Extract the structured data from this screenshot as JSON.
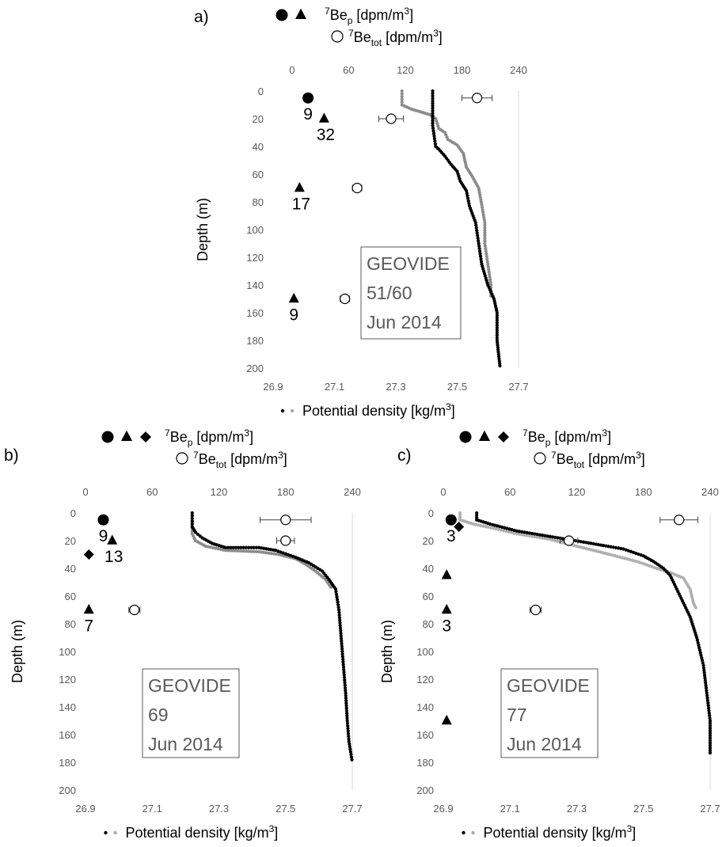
{
  "chart_data": [
    {
      "panel": "a)",
      "type": "scatter",
      "station_text": [
        "GEOVIDE",
        "51/60",
        "Jun 2014"
      ],
      "ylabel": "Depth (m)",
      "xlabel": "Potential density [kg/m³]",
      "legend_top": [
        "⁷Beₚ [dpm/m³]",
        "⁷Beₜₒₜ [dpm/m³]"
      ],
      "legend_symbols": [
        "circle",
        "triangle"
      ],
      "ylim": [
        200,
        0
      ],
      "yticks": [
        "0",
        "20",
        "40",
        "60",
        "80",
        "100",
        "120",
        "140",
        "160",
        "180",
        "200"
      ],
      "x_top": {
        "label_values": [
          "0",
          "60",
          "120",
          "180",
          "240"
        ],
        "lim": [
          -20,
          240
        ]
      },
      "x_bottom": {
        "label_values": [
          "26.9",
          "27.1",
          "27.3",
          "27.5",
          "27.7"
        ],
        "lim": [
          26.9,
          27.7
        ]
      },
      "be7_particulate": [
        {
          "shape": "circle",
          "value": 17,
          "depth": 5,
          "label": "9"
        },
        {
          "shape": "triangle",
          "value": 34,
          "depth": 20,
          "label": "32"
        },
        {
          "shape": "triangle",
          "value": 8,
          "depth": 70,
          "label": "17"
        },
        {
          "shape": "triangle",
          "value": 2,
          "depth": 150,
          "label": "9"
        }
      ],
      "be7_total": [
        {
          "value": 196,
          "depth": 5,
          "err": 16
        },
        {
          "value": 105,
          "depth": 20,
          "err": 13
        },
        {
          "value": 69,
          "depth": 70,
          "err": 5
        },
        {
          "value": 56,
          "depth": 150,
          "err": 5
        }
      ],
      "density_profiles": [
        {
          "name": "gray",
          "color": "#8c8c8c",
          "points": [
            [
              27.32,
              0
            ],
            [
              27.32,
              10
            ],
            [
              27.35,
              13
            ],
            [
              27.38,
              15
            ],
            [
              27.41,
              17
            ],
            [
              27.43,
              20
            ],
            [
              27.44,
              27
            ],
            [
              27.46,
              30
            ],
            [
              27.47,
              35
            ],
            [
              27.5,
              39
            ],
            [
              27.52,
              45
            ],
            [
              27.53,
              55
            ],
            [
              27.55,
              62
            ],
            [
              27.57,
              70
            ],
            [
              27.58,
              82
            ],
            [
              27.59,
              95
            ],
            [
              27.59,
              110
            ],
            [
              27.6,
              125
            ],
            [
              27.61,
              140
            ],
            [
              27.61,
              150
            ]
          ]
        },
        {
          "name": "black",
          "color": "#000000",
          "points": [
            [
              27.42,
              0
            ],
            [
              27.42,
              25
            ],
            [
              27.43,
              40
            ],
            [
              27.44,
              42
            ],
            [
              27.46,
              47
            ],
            [
              27.48,
              53
            ],
            [
              27.5,
              58
            ],
            [
              27.51,
              65
            ],
            [
              27.53,
              72
            ],
            [
              27.54,
              83
            ],
            [
              27.56,
              95
            ],
            [
              27.57,
              110
            ],
            [
              27.58,
              125
            ],
            [
              27.6,
              140
            ],
            [
              27.62,
              150
            ],
            [
              27.63,
              160
            ],
            [
              27.63,
              180
            ],
            [
              27.635,
              190
            ],
            [
              27.64,
              200
            ]
          ]
        }
      ]
    },
    {
      "panel": "b)",
      "type": "scatter",
      "station_text": [
        "GEOVIDE",
        "69",
        "Jun 2014"
      ],
      "ylabel": "Depth (m)",
      "xlabel": "Potential density [kg/m³]",
      "legend_top": [
        "⁷Beₚ [dpm/m³]",
        "⁷Beₜₒₜ [dpm/m³]"
      ],
      "legend_symbols": [
        "circle",
        "triangle",
        "diamond"
      ],
      "ylim": [
        200,
        0
      ],
      "yticks": [
        "0",
        "20",
        "40",
        "60",
        "80",
        "100",
        "120",
        "140",
        "160",
        "180",
        "200"
      ],
      "x_top": {
        "label_values": [
          "0",
          "60",
          "120",
          "180",
          "240"
        ],
        "lim": [
          0,
          240
        ]
      },
      "x_bottom": {
        "label_values": [
          "26.9",
          "27.1",
          "27.3",
          "27.5",
          "27.7"
        ],
        "lim": [
          26.9,
          27.7
        ]
      },
      "be7_particulate": [
        {
          "shape": "circle",
          "value": 16,
          "depth": 5,
          "label": "9"
        },
        {
          "shape": "triangle",
          "value": 24,
          "depth": 20,
          "label": "13"
        },
        {
          "shape": "diamond",
          "value": 3,
          "depth": 30,
          "label": ""
        },
        {
          "shape": "triangle",
          "value": 3,
          "depth": 70,
          "label": "7"
        }
      ],
      "be7_total": [
        {
          "value": 180,
          "depth": 5,
          "err": 23
        },
        {
          "value": 180,
          "depth": 20,
          "err": 8
        },
        {
          "value": 44,
          "depth": 70,
          "err": 5
        }
      ],
      "density_profiles": [
        {
          "name": "gray",
          "color": "#8c8c8c",
          "points": [
            [
              27.22,
              0
            ],
            [
              27.22,
              15
            ],
            [
              27.23,
              20
            ],
            [
              27.26,
              24
            ],
            [
              27.32,
              27
            ],
            [
              27.42,
              28
            ],
            [
              27.48,
              30
            ],
            [
              27.53,
              33
            ],
            [
              27.56,
              37
            ],
            [
              27.59,
              42
            ],
            [
              27.62,
              48
            ],
            [
              27.64,
              55
            ]
          ]
        },
        {
          "name": "black",
          "color": "#000000",
          "points": [
            [
              27.22,
              0
            ],
            [
              27.22,
              10
            ],
            [
              27.23,
              14
            ],
            [
              27.25,
              18
            ],
            [
              27.28,
              22
            ],
            [
              27.32,
              25
            ],
            [
              27.42,
              25
            ],
            [
              27.47,
              27
            ],
            [
              27.53,
              32
            ],
            [
              27.57,
              36
            ],
            [
              27.61,
              42
            ],
            [
              27.63,
              48
            ],
            [
              27.65,
              55
            ],
            [
              27.66,
              70
            ],
            [
              27.67,
              100
            ],
            [
              27.68,
              130
            ],
            [
              27.685,
              150
            ],
            [
              27.69,
              165
            ],
            [
              27.7,
              180
            ]
          ]
        }
      ]
    },
    {
      "panel": "c)",
      "type": "scatter",
      "station_text": [
        "GEOVIDE",
        "77",
        "Jun 2014"
      ],
      "ylabel": "Depth (m)",
      "xlabel": "Potential density [kg/m³]",
      "legend_top": [
        "⁷Beₚ [dpm/m³]",
        "⁷Beₜₒₜ [dpm/m³]"
      ],
      "legend_symbols": [
        "circle",
        "triangle",
        "diamond"
      ],
      "ylim": [
        200,
        0
      ],
      "yticks": [
        "0",
        "20",
        "40",
        "60",
        "80",
        "100",
        "120",
        "140",
        "160",
        "180",
        "200"
      ],
      "x_top": {
        "label_values": [
          "0",
          "60",
          "120",
          "180",
          "240"
        ],
        "lim": [
          0,
          240
        ]
      },
      "x_bottom": {
        "label_values": [
          "26.9",
          "27.1",
          "27.3",
          "27.5",
          "27.7"
        ],
        "lim": [
          26.9,
          27.7
        ]
      },
      "be7_particulate": [
        {
          "shape": "circle",
          "value": 7,
          "depth": 5,
          "label": "3"
        },
        {
          "shape": "diamond",
          "value": 14,
          "depth": 10,
          "label": ""
        },
        {
          "shape": "triangle",
          "value": 3,
          "depth": 45,
          "label": ""
        },
        {
          "shape": "triangle",
          "value": 3,
          "depth": 70,
          "label": "3"
        },
        {
          "shape": "triangle",
          "value": 3,
          "depth": 150,
          "label": ""
        }
      ],
      "be7_total": [
        {
          "value": 212,
          "depth": 5,
          "err": 17
        },
        {
          "value": 113,
          "depth": 20,
          "err": 8
        },
        {
          "value": 83,
          "depth": 70,
          "err": 5
        }
      ],
      "density_profiles": [
        {
          "name": "gray",
          "color": "#b0b0b0",
          "points": [
            [
              26.95,
              0
            ],
            [
              26.95,
              5
            ],
            [
              26.99,
              8
            ],
            [
              27.05,
              11
            ],
            [
              27.12,
              15
            ],
            [
              27.22,
              19
            ],
            [
              27.3,
              24
            ],
            [
              27.4,
              30
            ],
            [
              27.48,
              35
            ],
            [
              27.54,
              40
            ],
            [
              27.58,
              43
            ],
            [
              27.62,
              47
            ],
            [
              27.64,
              55
            ],
            [
              27.65,
              65
            ],
            [
              27.66,
              70
            ]
          ]
        },
        {
          "name": "black",
          "color": "#000000",
          "points": [
            [
              27.0,
              0
            ],
            [
              27.0,
              5
            ],
            [
              27.04,
              8
            ],
            [
              27.12,
              13
            ],
            [
              27.22,
              17
            ],
            [
              27.32,
              21
            ],
            [
              27.44,
              26
            ],
            [
              27.5,
              31
            ],
            [
              27.53,
              35
            ],
            [
              27.56,
              40
            ],
            [
              27.58,
              45
            ],
            [
              27.6,
              55
            ],
            [
              27.62,
              65
            ],
            [
              27.64,
              75
            ],
            [
              27.66,
              90
            ],
            [
              27.68,
              110
            ],
            [
              27.69,
              130
            ],
            [
              27.7,
              150
            ],
            [
              27.7,
              175
            ]
          ]
        }
      ]
    }
  ]
}
